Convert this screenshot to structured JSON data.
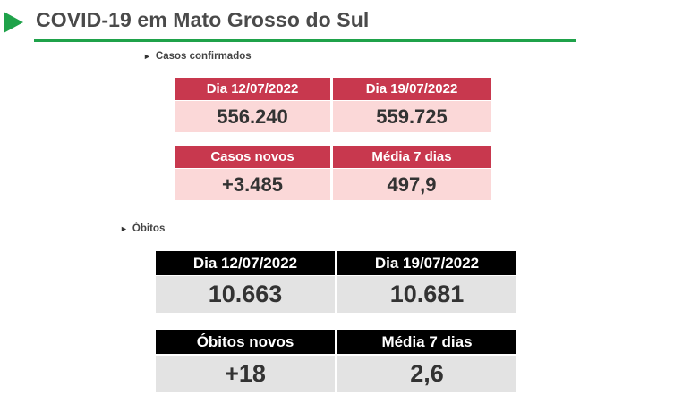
{
  "title": "COVID-19 em Mato Grosso do Sul",
  "casos": {
    "label": "Casos confirmados",
    "date1_label": "Dia 12/07/2022",
    "date1_value": "556.240",
    "date2_label": "Dia 19/07/2022",
    "date2_value": "559.725",
    "new_label": "Casos novos",
    "new_value": "+3.485",
    "avg_label": "Média 7 dias",
    "avg_value": "497,9"
  },
  "obitos": {
    "label": "Óbitos",
    "date1_label": "Dia 12/07/2022",
    "date1_value": "10.663",
    "date2_label": "Dia 19/07/2022",
    "date2_value": "10.681",
    "new_label": "Óbitos novos",
    "new_value": "+18",
    "avg_label": "Média 7 dias",
    "avg_value": "2,6"
  },
  "colors": {
    "accent_green": "#1fa24a",
    "cases_header": "#c8384e",
    "cases_value_bg": "#fbd8d8",
    "deaths_header": "#000000",
    "deaths_value_bg": "#e3e3e3"
  },
  "icons": {
    "title_marker": "play-triangle-icon",
    "section_marker": "small-triangle-icon"
  }
}
